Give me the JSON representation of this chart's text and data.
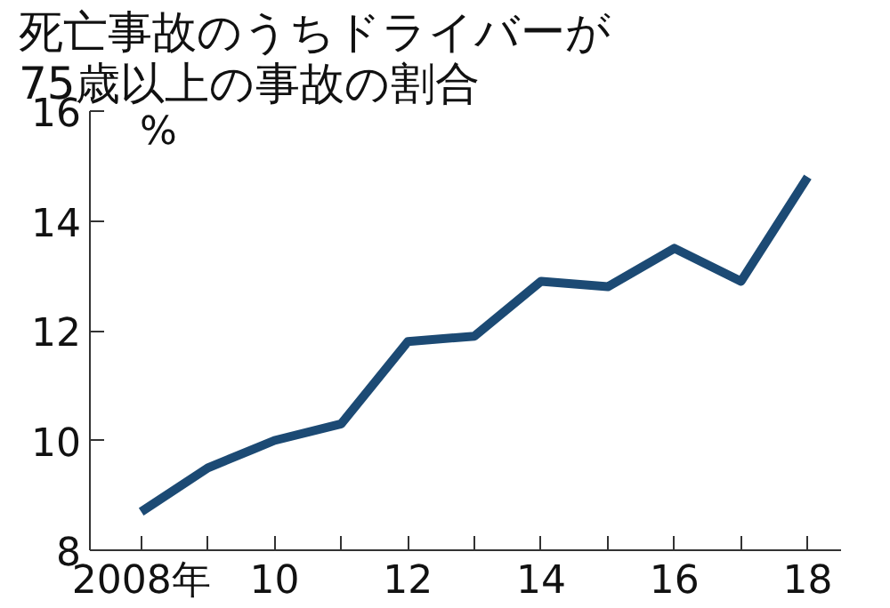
{
  "chart_data": {
    "type": "line",
    "title": "死亡事故のうちドライバーが\n75歳以上の事故の割合",
    "annotations": [
      "%"
    ],
    "x": [
      2008,
      2009,
      2010,
      2011,
      2012,
      2013,
      2014,
      2015,
      2016,
      2017,
      2018
    ],
    "series": [
      {
        "color": "#1c4a74",
        "values": [
          8.7,
          9.5,
          10.0,
          10.3,
          11.8,
          11.9,
          12.9,
          12.8,
          13.5,
          12.9,
          14.8
        ]
      }
    ],
    "xlim": [
      2007.23,
      2018.5
    ],
    "ylim": [
      8,
      16
    ],
    "xticks": [
      {
        "value": 2008,
        "label": "2008年"
      },
      {
        "value": 2009,
        "label": null
      },
      {
        "value": 2010,
        "label": "10"
      },
      {
        "value": 2011,
        "label": null
      },
      {
        "value": 2012,
        "label": "12"
      },
      {
        "value": 2013,
        "label": null
      },
      {
        "value": 2014,
        "label": "14"
      },
      {
        "value": 2015,
        "label": null
      },
      {
        "value": 2016,
        "label": "16"
      },
      {
        "value": 2017,
        "label": null
      },
      {
        "value": 2018,
        "label": "18"
      }
    ],
    "yticks": [
      8,
      10,
      12,
      14,
      16
    ],
    "grid": false,
    "marker": "none",
    "line_style": "solid"
  }
}
